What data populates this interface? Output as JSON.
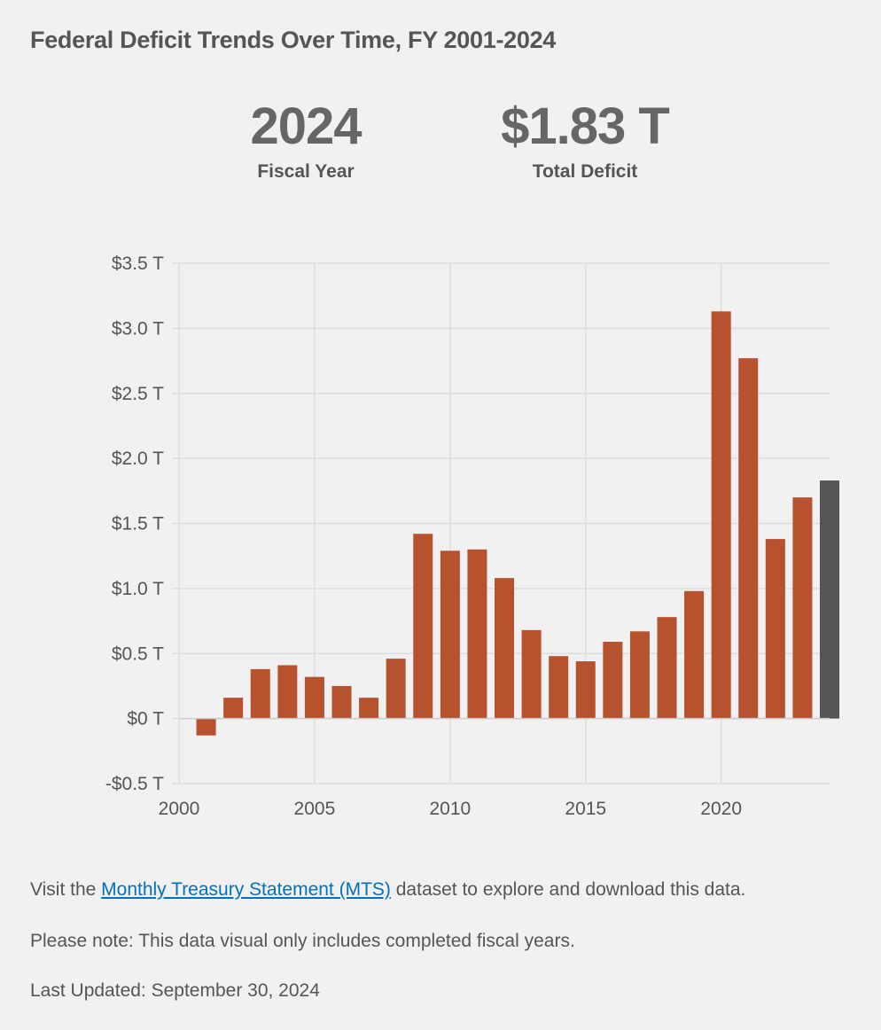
{
  "title": "Federal Deficit Trends Over Time, FY 2001-2024",
  "stats": {
    "year_value": "2024",
    "year_label": "Fiscal Year",
    "deficit_value": "$1.83 T",
    "deficit_label": "Total Deficit"
  },
  "colors": {
    "bar": "#b7522f",
    "highlight_bar": "#555555",
    "grid": "#dddddd",
    "link": "#0071bc"
  },
  "chart_data": {
    "type": "bar",
    "title": "Federal Deficit Trends Over Time, FY 2001-2024",
    "xlabel": "",
    "ylabel": "",
    "xlim": [
      2000,
      2024
    ],
    "ylim": [
      -0.5,
      3.5
    ],
    "grid": true,
    "y_ticks": [
      -0.5,
      0,
      0.5,
      1.0,
      1.5,
      2.0,
      2.5,
      3.0,
      3.5
    ],
    "y_tick_labels": [
      "-$0.5 T",
      "$0 T",
      "$0.5 T",
      "$1.0 T",
      "$1.5 T",
      "$2.0 T",
      "$2.5 T",
      "$3.0 T",
      "$3.5 T"
    ],
    "x_ticks": [
      2000,
      2005,
      2010,
      2015,
      2020
    ],
    "x_tick_labels": [
      "2000",
      "2005",
      "2010",
      "2015",
      "2020"
    ],
    "highlight_year": 2024,
    "years": [
      2001,
      2002,
      2003,
      2004,
      2005,
      2006,
      2007,
      2008,
      2009,
      2010,
      2011,
      2012,
      2013,
      2014,
      2015,
      2016,
      2017,
      2018,
      2019,
      2020,
      2021,
      2022,
      2023,
      2024
    ],
    "values": [
      -0.13,
      0.16,
      0.38,
      0.41,
      0.32,
      0.25,
      0.16,
      0.46,
      1.42,
      1.29,
      1.3,
      1.08,
      0.68,
      0.48,
      0.44,
      0.59,
      0.67,
      0.78,
      0.98,
      3.13,
      2.77,
      1.38,
      1.7,
      1.83
    ]
  },
  "notes": {
    "visit_prefix": "Visit the ",
    "visit_link": "Monthly Treasury Statement (MTS)",
    "visit_suffix": " dataset to explore and download this data.",
    "note": "Please note: This data visual only includes completed fiscal years.",
    "updated": "Last Updated: September 30, 2024"
  }
}
